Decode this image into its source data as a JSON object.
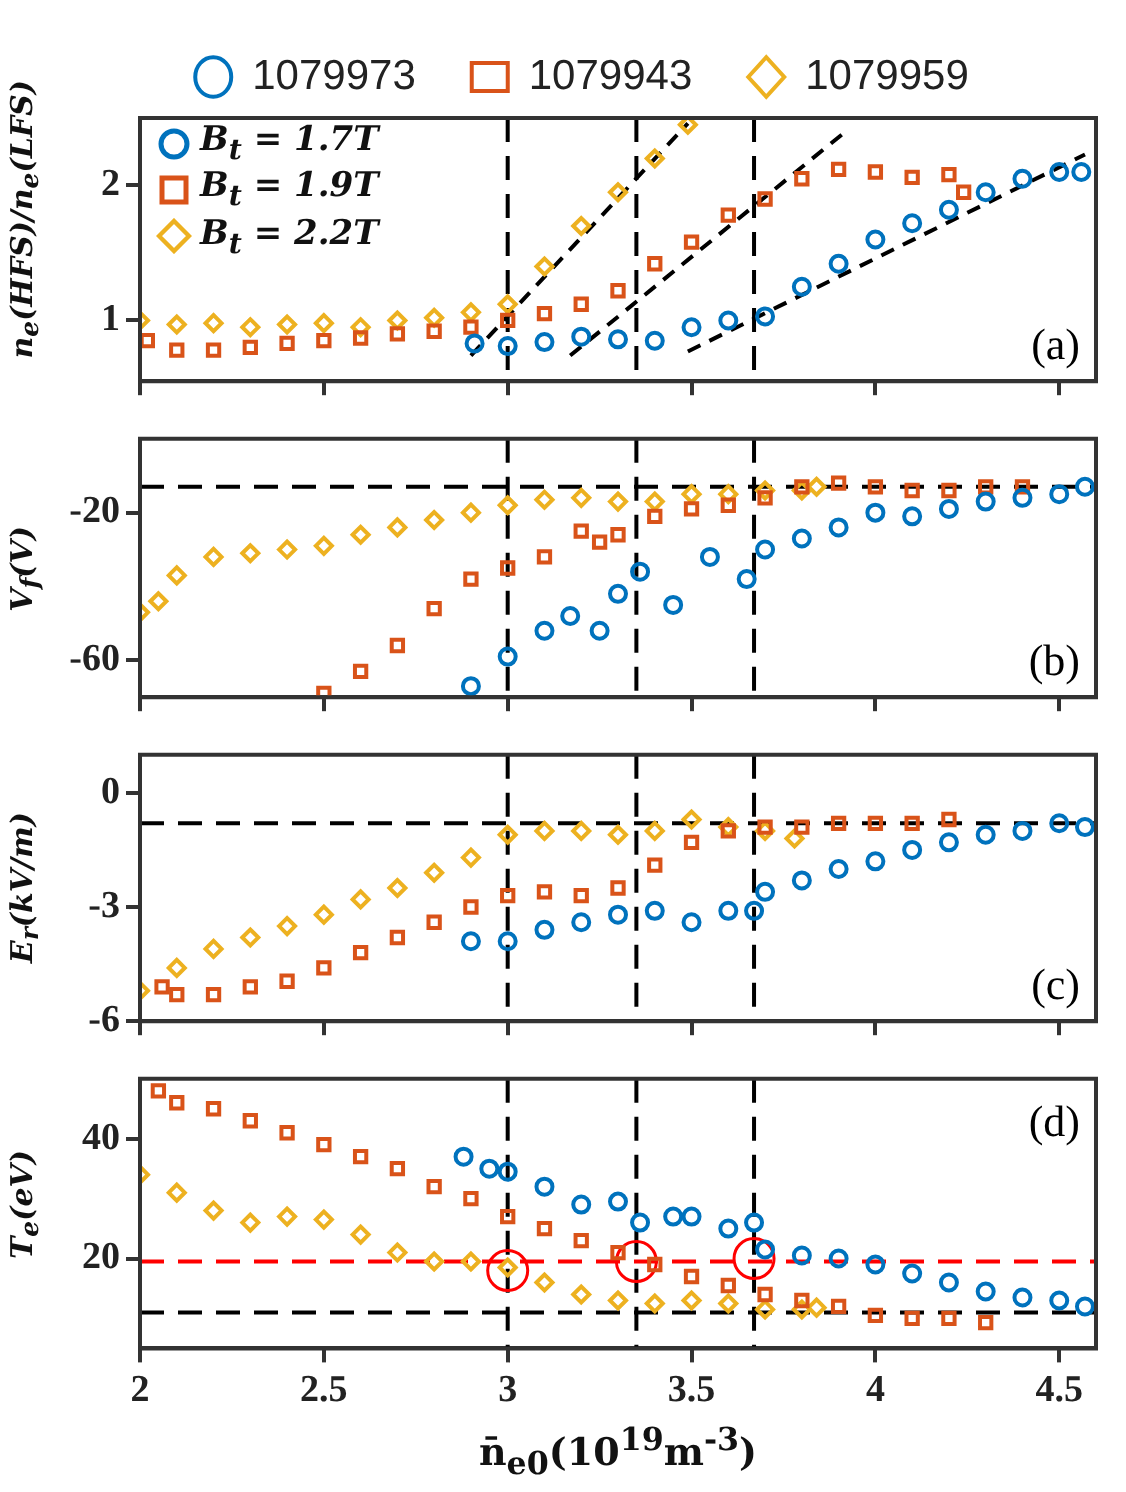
{
  "chart_data": [
    {
      "type": "scatter",
      "ylabel": "n$_{e}$(HFS)/n$_{e}$(LFS)",
      "xlim": [
        2,
        4.6
      ],
      "xticks": [
        2,
        2.5,
        3,
        3.5,
        4,
        4.5
      ],
      "ylim": [
        0.55,
        2.5
      ],
      "yticks": [
        1,
        2
      ],
      "tick_labels": "y",
      "legend": "top",
      "annotations": [
        "B$_{t}$ = 1.7T",
        "B$_{t}$ = 1.9T",
        "B$_{t}$ = 2.2T",
        "(a)"
      ],
      "ref_lines": [
        {
          "axis": "x",
          "value": 3,
          "line_style": "dashed"
        },
        {
          "axis": "x",
          "value": 3.35,
          "line_style": "dashed"
        },
        {
          "axis": "x",
          "value": 3.67,
          "line_style": "dashed"
        }
      ],
      "series": [
        {
          "name": "1079973",
          "color": "#0072bd",
          "marker": "circle",
          "x": [
            2.91,
            3.0,
            3.1,
            3.2,
            3.3,
            3.4,
            3.5,
            3.6,
            3.7,
            3.8,
            3.9,
            4.0,
            4.1,
            4.2,
            4.3,
            4.4,
            4.5,
            4.56
          ],
          "values": [
            0.83,
            0.81,
            0.84,
            0.88,
            0.86,
            0.85,
            0.95,
            1.0,
            1.03,
            1.25,
            1.42,
            1.6,
            1.72,
            1.82,
            1.95,
            2.05,
            2.1,
            2.1
          ]
        },
        {
          "name": "1079943",
          "color": "#d95319",
          "marker": "square",
          "x": [
            2.02,
            2.1,
            2.2,
            2.3,
            2.4,
            2.5,
            2.6,
            2.7,
            2.8,
            2.9,
            3.0,
            3.1,
            3.2,
            3.3,
            3.4,
            3.5,
            3.6,
            3.7,
            3.8,
            3.9,
            4.0,
            4.1,
            4.2,
            4.24
          ],
          "values": [
            0.85,
            0.78,
            0.78,
            0.8,
            0.83,
            0.85,
            0.87,
            0.9,
            0.92,
            0.95,
            1.0,
            1.05,
            1.12,
            1.22,
            1.42,
            1.58,
            1.78,
            1.9,
            2.05,
            2.12,
            2.1,
            2.06,
            2.08,
            1.95
          ]
        },
        {
          "name": "1079959",
          "color": "#edb120",
          "marker": "diamond",
          "x": [
            2.0,
            2.1,
            2.2,
            2.3,
            2.4,
            2.5,
            2.6,
            2.7,
            2.8,
            2.9,
            3.0,
            3.1,
            3.2,
            3.3,
            3.4,
            3.49
          ],
          "values": [
            1.0,
            0.97,
            0.98,
            0.95,
            0.97,
            0.98,
            0.95,
            1.0,
            1.02,
            1.06,
            1.12,
            1.4,
            1.7,
            1.95,
            2.2,
            2.45
          ]
        },
        {
          "type": "line",
          "color": "#000000",
          "line_style": "dashed",
          "marker": "none",
          "x": [
            3.49,
            4.57
          ],
          "values": [
            0.77,
            2.23
          ]
        },
        {
          "type": "line",
          "color": "#000000",
          "line_style": "dashed",
          "marker": "none",
          "x": [
            3.17,
            3.91
          ],
          "values": [
            0.74,
            2.38
          ]
        },
        {
          "type": "line",
          "color": "#000000",
          "line_style": "dashed",
          "marker": "none",
          "x": [
            2.9,
            3.49
          ],
          "values": [
            0.74,
            2.46
          ]
        }
      ]
    },
    {
      "type": "scatter",
      "ylabel": "V$_{f}$(V)",
      "xlim": [
        2,
        4.6
      ],
      "xticks": [
        2,
        2.5,
        3,
        3.5,
        4,
        4.5
      ],
      "ylim": [
        -70,
        0
      ],
      "yticks": [
        -20,
        -60
      ],
      "tick_labels": "y",
      "annotations": [
        "(b)"
      ],
      "ref_lines": [
        {
          "axis": "x",
          "value": 3,
          "line_style": "dashed"
        },
        {
          "axis": "x",
          "value": 3.35,
          "line_style": "dashed"
        },
        {
          "axis": "x",
          "value": 3.67,
          "line_style": "dashed"
        },
        {
          "axis": "y",
          "value": -13,
          "line_style": "dashed"
        }
      ],
      "series": [
        {
          "color": "#0072bd",
          "marker": "circle",
          "x": [
            2.9,
            3.0,
            3.1,
            3.17,
            3.25,
            3.3,
            3.36,
            3.45,
            3.55,
            3.65,
            3.7,
            3.8,
            3.9,
            4.0,
            4.1,
            4.2,
            4.3,
            4.4,
            4.5,
            4.57
          ],
          "values": [
            -67,
            -59,
            -52,
            -48,
            -52,
            -42,
            -36,
            -45,
            -32,
            -38,
            -30,
            -27,
            -24,
            -20,
            -21,
            -19,
            -17,
            -16,
            -15,
            -13
          ]
        },
        {
          "color": "#d95319",
          "marker": "square",
          "x": [
            2.5,
            2.6,
            2.7,
            2.8,
            2.9,
            3.0,
            3.1,
            3.2,
            3.25,
            3.3,
            3.4,
            3.5,
            3.6,
            3.7,
            3.8,
            3.9,
            4.0,
            4.1,
            4.2,
            4.3,
            4.4
          ],
          "values": [
            -69,
            -63,
            -56,
            -46,
            -38,
            -35,
            -32,
            -25,
            -28,
            -26,
            -21,
            -19,
            -18,
            -16,
            -13,
            -12,
            -13,
            -14,
            -14,
            -13,
            -13
          ]
        },
        {
          "color": "#edb120",
          "marker": "diamond",
          "x": [
            2.0,
            2.05,
            2.1,
            2.2,
            2.3,
            2.4,
            2.5,
            2.6,
            2.7,
            2.8,
            2.9,
            3.0,
            3.1,
            3.2,
            3.3,
            3.4,
            3.5,
            3.6,
            3.7,
            3.8,
            3.84
          ],
          "values": [
            -47,
            -44,
            -37,
            -32,
            -31,
            -30,
            -29,
            -26,
            -24,
            -22,
            -20,
            -18,
            -16.5,
            -16,
            -17,
            -17,
            -15,
            -15,
            -14,
            -14,
            -13
          ]
        }
      ]
    },
    {
      "type": "scatter",
      "ylabel": "E$_{r}$(kV/m)",
      "xlim": [
        2,
        4.6
      ],
      "xticks": [
        2,
        2.5,
        3,
        3.5,
        4,
        4.5
      ],
      "ylim": [
        -6,
        1
      ],
      "yticks": [
        0,
        -3,
        -6
      ],
      "tick_labels": "y",
      "annotations": [
        "(c)"
      ],
      "ref_lines": [
        {
          "axis": "x",
          "value": 3,
          "line_style": "dashed"
        },
        {
          "axis": "x",
          "value": 3.35,
          "line_style": "dashed"
        },
        {
          "axis": "x",
          "value": 3.67,
          "line_style": "dashed"
        },
        {
          "axis": "y",
          "value": -0.8,
          "line_style": "dashed"
        }
      ],
      "series": [
        {
          "color": "#0072bd",
          "marker": "circle",
          "x": [
            2.9,
            3.0,
            3.1,
            3.2,
            3.3,
            3.4,
            3.5,
            3.6,
            3.67,
            3.7,
            3.8,
            3.9,
            4.0,
            4.1,
            4.2,
            4.3,
            4.4,
            4.5,
            4.57
          ],
          "values": [
            -3.9,
            -3.9,
            -3.6,
            -3.4,
            -3.2,
            -3.1,
            -3.4,
            -3.1,
            -3.1,
            -2.6,
            -2.3,
            -2.0,
            -1.8,
            -1.5,
            -1.3,
            -1.1,
            -1.0,
            -0.8,
            -0.9
          ]
        },
        {
          "color": "#d95319",
          "marker": "square",
          "x": [
            2.06,
            2.1,
            2.2,
            2.3,
            2.4,
            2.5,
            2.6,
            2.7,
            2.8,
            2.9,
            3.0,
            3.1,
            3.2,
            3.3,
            3.4,
            3.5,
            3.6,
            3.7,
            3.8,
            3.9,
            4.0,
            4.1,
            4.2
          ],
          "values": [
            -5.1,
            -5.3,
            -5.3,
            -5.1,
            -4.95,
            -4.6,
            -4.2,
            -3.8,
            -3.4,
            -3.0,
            -2.7,
            -2.6,
            -2.7,
            -2.5,
            -1.9,
            -1.3,
            -1.0,
            -0.9,
            -0.9,
            -0.8,
            -0.8,
            -0.8,
            -0.7
          ]
        },
        {
          "color": "#edb120",
          "marker": "diamond",
          "x": [
            2.0,
            2.1,
            2.2,
            2.3,
            2.4,
            2.5,
            2.6,
            2.7,
            2.8,
            2.9,
            3.0,
            3.1,
            3.2,
            3.3,
            3.4,
            3.5,
            3.6,
            3.7,
            3.78
          ],
          "values": [
            -5.2,
            -4.6,
            -4.1,
            -3.8,
            -3.5,
            -3.2,
            -2.8,
            -2.5,
            -2.1,
            -1.7,
            -1.1,
            -1.0,
            -1.0,
            -1.1,
            -1.0,
            -0.7,
            -0.9,
            -1.0,
            -1.2
          ]
        }
      ]
    },
    {
      "type": "scatter",
      "ylabel": "T$_{e}$(eV)",
      "xlabel": "n̄$_{e0}$(10$^{19}$m$^{-3}$)",
      "xlim": [
        2,
        4.6
      ],
      "xticks": [
        2,
        2.5,
        3,
        3.5,
        4,
        4.5
      ],
      "ylim": [
        5,
        50
      ],
      "yticks": [
        20,
        40
      ],
      "annotations": [
        "(d)"
      ],
      "ref_lines": [
        {
          "axis": "x",
          "value": 3,
          "line_style": "dashed"
        },
        {
          "axis": "x",
          "value": 3.35,
          "line_style": "dashed"
        },
        {
          "axis": "x",
          "value": 3.67,
          "line_style": "dashed"
        },
        {
          "axis": "y",
          "value": 11,
          "line_style": "dashed"
        },
        {
          "axis": "y",
          "value": 19.5,
          "line_style": "dashed",
          "color": "#ff0000"
        }
      ],
      "series": [
        {
          "color": "#0072bd",
          "marker": "circle",
          "x": [
            2.88,
            2.95,
            3.0,
            3.1,
            3.2,
            3.3,
            3.36,
            3.45,
            3.5,
            3.6,
            3.67,
            3.7,
            3.8,
            3.9,
            4.0,
            4.1,
            4.2,
            4.3,
            4.4,
            4.5,
            4.57
          ],
          "values": [
            37,
            35,
            34.5,
            32,
            29,
            29.5,
            26,
            27,
            27,
            25,
            26,
            21.5,
            20.5,
            20,
            19,
            17.5,
            16,
            14.5,
            13.5,
            13,
            12
          ]
        },
        {
          "color": "#d95319",
          "marker": "square",
          "x": [
            2.05,
            2.1,
            2.2,
            2.3,
            2.4,
            2.5,
            2.6,
            2.7,
            2.8,
            2.9,
            3.0,
            3.1,
            3.2,
            3.3,
            3.4,
            3.5,
            3.6,
            3.7,
            3.8,
            3.9,
            4.0,
            4.1,
            4.2,
            4.3
          ],
          "values": [
            48,
            46,
            45,
            43,
            41,
            39,
            37,
            35,
            32,
            30,
            27,
            25,
            23,
            21,
            19,
            17,
            15.5,
            14,
            13,
            12,
            10.5,
            10,
            10,
            9.3
          ]
        },
        {
          "color": "#edb120",
          "marker": "diamond",
          "x": [
            2.0,
            2.1,
            2.2,
            2.3,
            2.4,
            2.5,
            2.6,
            2.7,
            2.8,
            2.9,
            3.0,
            3.1,
            3.2,
            3.3,
            3.4,
            3.5,
            3.6,
            3.7,
            3.8,
            3.84
          ],
          "values": [
            34,
            31,
            28,
            26,
            27,
            26.5,
            24,
            21,
            19.5,
            19.5,
            18.5,
            16,
            14,
            13,
            12.5,
            13,
            12.5,
            11.5,
            11.5,
            11.8
          ]
        },
        {
          "color": "#ff0000",
          "marker": "circle",
          "x": [
            3.0,
            3.35,
            3.67
          ],
          "values": [
            18,
            19.5,
            20
          ]
        }
      ]
    }
  ]
}
